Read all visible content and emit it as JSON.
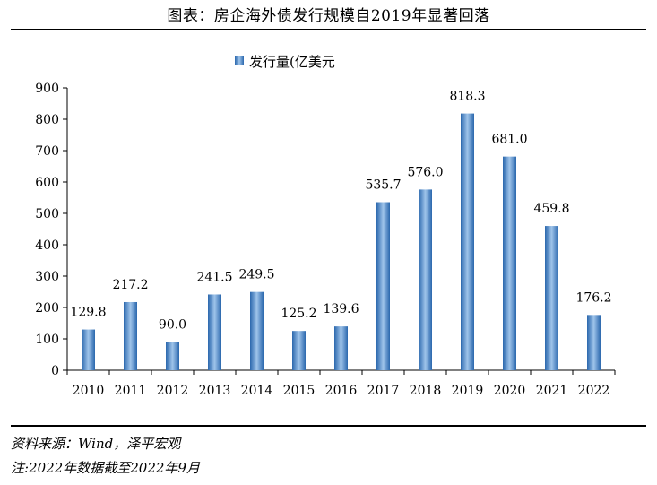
{
  "title": "图表：房企海外债发行规模自2019年显著回落",
  "legend_label": "发行量(亿美元",
  "footnotes": {
    "source": "资料来源：Wind，泽平宏观",
    "note": "注:2022年数据截至2022年9月"
  },
  "colors": {
    "bar_dark": "#2a67ad",
    "bar_light": "#9fc4ea",
    "axis": "#000000"
  },
  "chart_data": {
    "type": "bar",
    "title": "图表：房企海外债发行规模自2019年显著回落",
    "xlabel": "",
    "ylabel": "",
    "categories": [
      "2010",
      "2011",
      "2012",
      "2013",
      "2014",
      "2015",
      "2016",
      "2017",
      "2018",
      "2019",
      "2020",
      "2021",
      "2022"
    ],
    "series": [
      {
        "name": "发行量(亿美元",
        "values": [
          129.8,
          217.2,
          90.0,
          241.5,
          249.5,
          125.2,
          139.6,
          535.7,
          576.0,
          818.3,
          681.0,
          459.8,
          176.2
        ],
        "labels": [
          "129.8",
          "217.2",
          "90.0",
          "241.5",
          "249.5",
          "125.2",
          "139.6",
          "535.7",
          "576.0",
          "818.3",
          "681.0",
          "459.8",
          "176.2"
        ]
      }
    ],
    "ylim": [
      0,
      900
    ],
    "yticks": [
      "0",
      "100",
      "200",
      "300",
      "400",
      "500",
      "600",
      "700",
      "800",
      "900"
    ],
    "grid": false,
    "legend_position": "top-center"
  }
}
